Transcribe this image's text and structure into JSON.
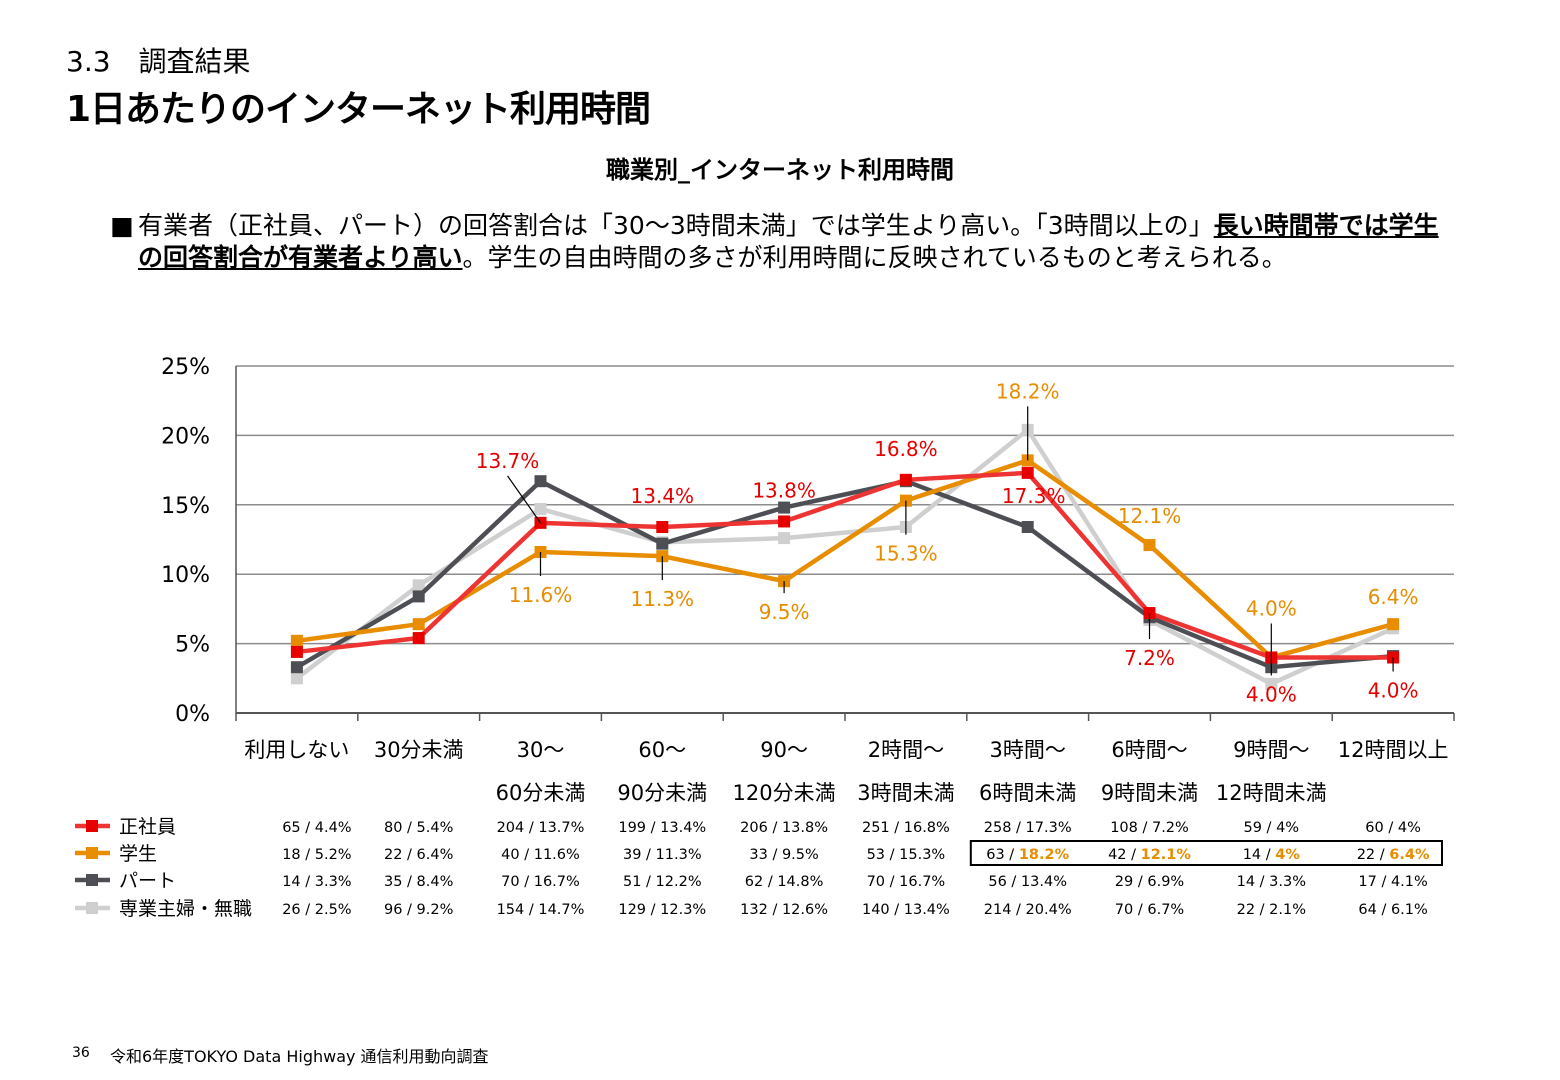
{
  "header": {
    "section": "3.3　調査結果",
    "title": "1日あたりのインターネット利用時間",
    "subtitle": "職業別_インターネット利用時間"
  },
  "description": {
    "bullet": "■",
    "part1": "有業者（正社員、パート）の回答割合は「30～3時間未満」では学生より高い。「3時間以上の」",
    "emph1": "長い時間帯では学生",
    "emph2": "の回答割合が有業者より高い",
    "part2": "。学生の自由時間の多さが利用時間に反映されているものと考えられる。"
  },
  "footer": {
    "page": "36",
    "source": "令和6年度TOKYO Data Highway 通信利用動向調査"
  },
  "chart_data": {
    "type": "line",
    "y_ticks": [
      "0%",
      "5%",
      "10%",
      "15%",
      "20%",
      "25%"
    ],
    "ylim": [
      0,
      25
    ],
    "grid": true,
    "categories": [
      [
        "利用しない",
        ""
      ],
      [
        "30分未満",
        ""
      ],
      [
        "30～",
        "60分未満"
      ],
      [
        "60～",
        "90分未満"
      ],
      [
        "90～",
        "120分未満"
      ],
      [
        "2時間～",
        "3時間未満"
      ],
      [
        "3時間～",
        "6時間未満"
      ],
      [
        "6時間～",
        "9時間未満"
      ],
      [
        "9時間～",
        "12時間未満"
      ],
      [
        "12時間以上",
        ""
      ]
    ],
    "series": [
      {
        "name": "正社員",
        "color": "#ee3333",
        "marker_color": "#e60000",
        "values": [
          4.4,
          5.4,
          13.7,
          13.4,
          13.8,
          16.8,
          17.3,
          7.2,
          4.0,
          4.0
        ],
        "table": [
          "65 / 4.4%",
          "80 / 5.4%",
          "204 / 13.7%",
          "199 / 13.4%",
          "206 / 13.8%",
          "251 / 16.8%",
          "258 / 17.3%",
          "108 / 7.2%",
          "59 / 4%",
          "60 / 4%"
        ]
      },
      {
        "name": "学生",
        "color": "#e88c00",
        "marker_color": "#e88c00",
        "values": [
          5.2,
          6.4,
          11.6,
          11.3,
          9.5,
          15.3,
          18.2,
          12.1,
          4.0,
          6.4
        ],
        "table": [
          "18 / 5.2%",
          "22 / 6.4%",
          "40 / 11.6%",
          "39 / 11.3%",
          "33 / 9.5%",
          "53 / 15.3%",
          "63 / 18.2%",
          "42 / 12.1%",
          "14 / 4%",
          "22 / 6.4%"
        ]
      },
      {
        "name": "パート",
        "color": "#4d4f55",
        "marker_color": "#4d4f55",
        "values": [
          3.3,
          8.4,
          16.7,
          12.2,
          14.8,
          16.7,
          13.4,
          6.9,
          3.3,
          4.1
        ],
        "table": [
          "14 / 3.3%",
          "35 / 8.4%",
          "70 / 16.7%",
          "51 / 12.2%",
          "62 / 14.8%",
          "70 / 16.7%",
          "56 / 13.4%",
          "29 / 6.9%",
          "14 / 3.3%",
          "17 / 4.1%"
        ]
      },
      {
        "name": "専業主婦・無職",
        "color": "#cfcfcf",
        "marker_color": "#cfcfcf",
        "values": [
          2.5,
          9.2,
          14.7,
          12.3,
          12.6,
          13.4,
          20.4,
          6.7,
          2.1,
          6.1
        ],
        "table": [
          "26 / 2.5%",
          "96 / 9.2%",
          "154 / 14.7%",
          "129 / 12.3%",
          "132 / 12.6%",
          "140 / 13.4%",
          "214 / 20.4%",
          "70 / 6.7%",
          "22 / 2.1%",
          "64 / 6.1%"
        ]
      }
    ],
    "annotations": [
      {
        "series": 0,
        "index": 2,
        "text": "13.7%"
      },
      {
        "series": 0,
        "index": 3,
        "text": "13.4%"
      },
      {
        "series": 0,
        "index": 4,
        "text": "13.8%"
      },
      {
        "series": 0,
        "index": 5,
        "text": "16.8%"
      },
      {
        "series": 0,
        "index": 6,
        "text": "17.3%"
      },
      {
        "series": 0,
        "index": 7,
        "text": "7.2%"
      },
      {
        "series": 0,
        "index": 8,
        "text": "4.0%"
      },
      {
        "series": 0,
        "index": 9,
        "text": "4.0%"
      },
      {
        "series": 1,
        "index": 2,
        "text": "11.6%"
      },
      {
        "series": 1,
        "index": 3,
        "text": "11.3%"
      },
      {
        "series": 1,
        "index": 4,
        "text": "9.5%"
      },
      {
        "series": 1,
        "index": 5,
        "text": "15.3%"
      },
      {
        "series": 1,
        "index": 6,
        "text": "18.2%"
      },
      {
        "series": 1,
        "index": 7,
        "text": "12.1%"
      },
      {
        "series": 1,
        "index": 8,
        "text": "4.0%"
      },
      {
        "series": 1,
        "index": 9,
        "text": "6.4%"
      }
    ],
    "highlight_box": {
      "series": 1,
      "from_index": 6,
      "to_index": 9
    }
  }
}
